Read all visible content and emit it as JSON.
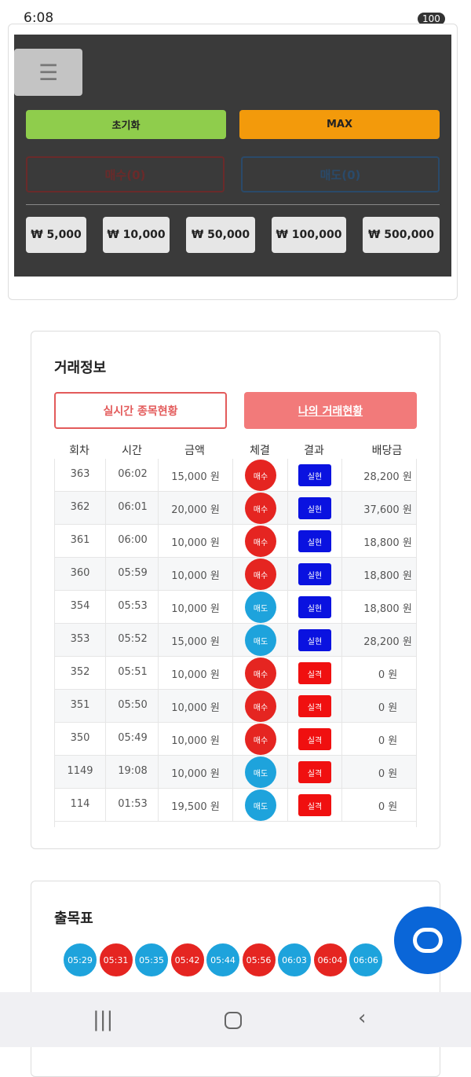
{
  "status_bar": {
    "time": "6:08",
    "battery": "100"
  },
  "controls": {
    "reset": "초기화",
    "max": "MAX",
    "buy": "매수(0)",
    "sell": "매도(0)",
    "amounts": [
      "₩ 5,000",
      "₩ 10,000",
      "₩ 50,000",
      "₩ 100,000",
      "₩ 500,000"
    ]
  },
  "trade_info": {
    "title": "거래정보",
    "tabs": [
      "실시간 종목현황",
      "나의 거래현황"
    ],
    "headers": [
      "회차",
      "시간",
      "금액",
      "체결",
      "결과",
      "배당금"
    ],
    "rows": [
      [
        "363",
        "06:02",
        "15,000 원",
        "매수",
        "실현",
        "28,200 원"
      ],
      [
        "362",
        "06:01",
        "20,000 원",
        "매수",
        "실현",
        "37,600 원"
      ],
      [
        "361",
        "06:00",
        "10,000 원",
        "매수",
        "실현",
        "18,800 원"
      ],
      [
        "360",
        "05:59",
        "10,000 원",
        "매수",
        "실현",
        "18,800 원"
      ],
      [
        "354",
        "05:53",
        "10,000 원",
        "매도",
        "실현",
        "18,800 원"
      ],
      [
        "353",
        "05:52",
        "15,000 원",
        "매도",
        "실현",
        "28,200 원"
      ],
      [
        "352",
        "05:51",
        "10,000 원",
        "매수",
        "실격",
        "0 원"
      ],
      [
        "351",
        "05:50",
        "10,000 원",
        "매수",
        "실격",
        "0 원"
      ],
      [
        "350",
        "05:49",
        "10,000 원",
        "매수",
        "실격",
        "0 원"
      ],
      [
        "1149",
        "19:08",
        "10,000 원",
        "매도",
        "실격",
        "0 원"
      ],
      [
        "114",
        "01:53",
        "19,500 원",
        "매도",
        "실격",
        "0 원"
      ]
    ],
    "side_colors": [
      "#e52521",
      "#e52521",
      "#e52521",
      "#e52521",
      "#1ea3dc",
      "#1ea3dc",
      "#e52521",
      "#e52521",
      "#e52521",
      "#1ea3dc",
      "#1ea3dc"
    ],
    "result_colors": [
      "#0a12e0",
      "#0a12e0",
      "#0a12e0",
      "#0a12e0",
      "#0a12e0",
      "#0a12e0",
      "#f01010",
      "#f01010",
      "#f01010",
      "#f01010",
      "#f01010"
    ]
  },
  "result_board": {
    "title": "출목표",
    "times": [
      "05:29",
      "05:31",
      "05:35",
      "05:42",
      "05:44",
      "05:56",
      "06:03",
      "06:04",
      "06:06"
    ],
    "colors": [
      "#1ea3dc",
      "#e52521",
      "#1ea3dc",
      "#e52521",
      "#1ea3dc",
      "#e52521",
      "#1ea3dc",
      "#e52521",
      "#1ea3dc"
    ]
  }
}
